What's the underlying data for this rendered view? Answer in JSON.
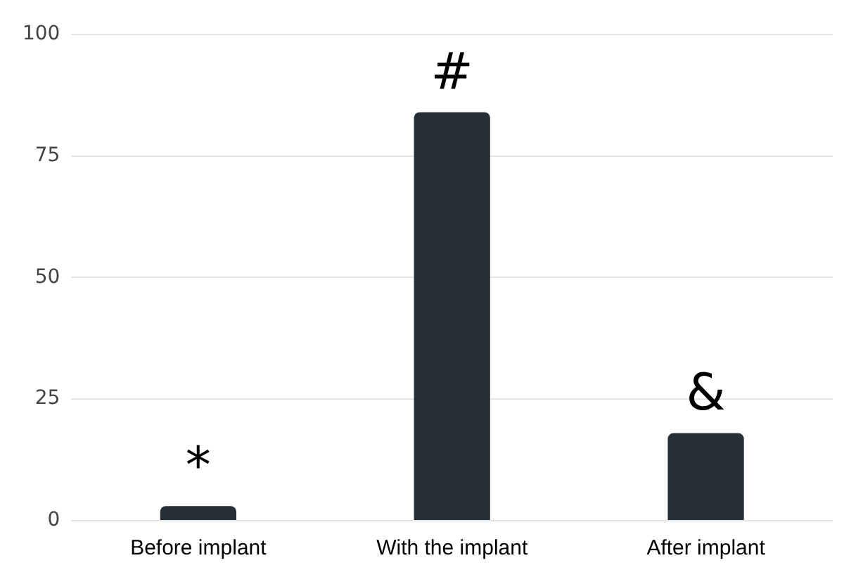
{
  "chart_data": {
    "type": "bar",
    "categories": [
      "Before implant",
      "With the implant",
      "After implant"
    ],
    "values": [
      3,
      84,
      18
    ],
    "color": "#262f38",
    "ylim": [
      0,
      100
    ],
    "yticks": [
      0,
      25,
      50,
      75,
      100
    ],
    "grid": "y",
    "legend": false,
    "annotations": [
      {
        "text": "*",
        "x": "Before implant",
        "y": 3
      },
      {
        "text": "#",
        "x": "With the implant",
        "y": 84
      },
      {
        "text": "&",
        "x": "After implant",
        "y": 18
      }
    ]
  }
}
